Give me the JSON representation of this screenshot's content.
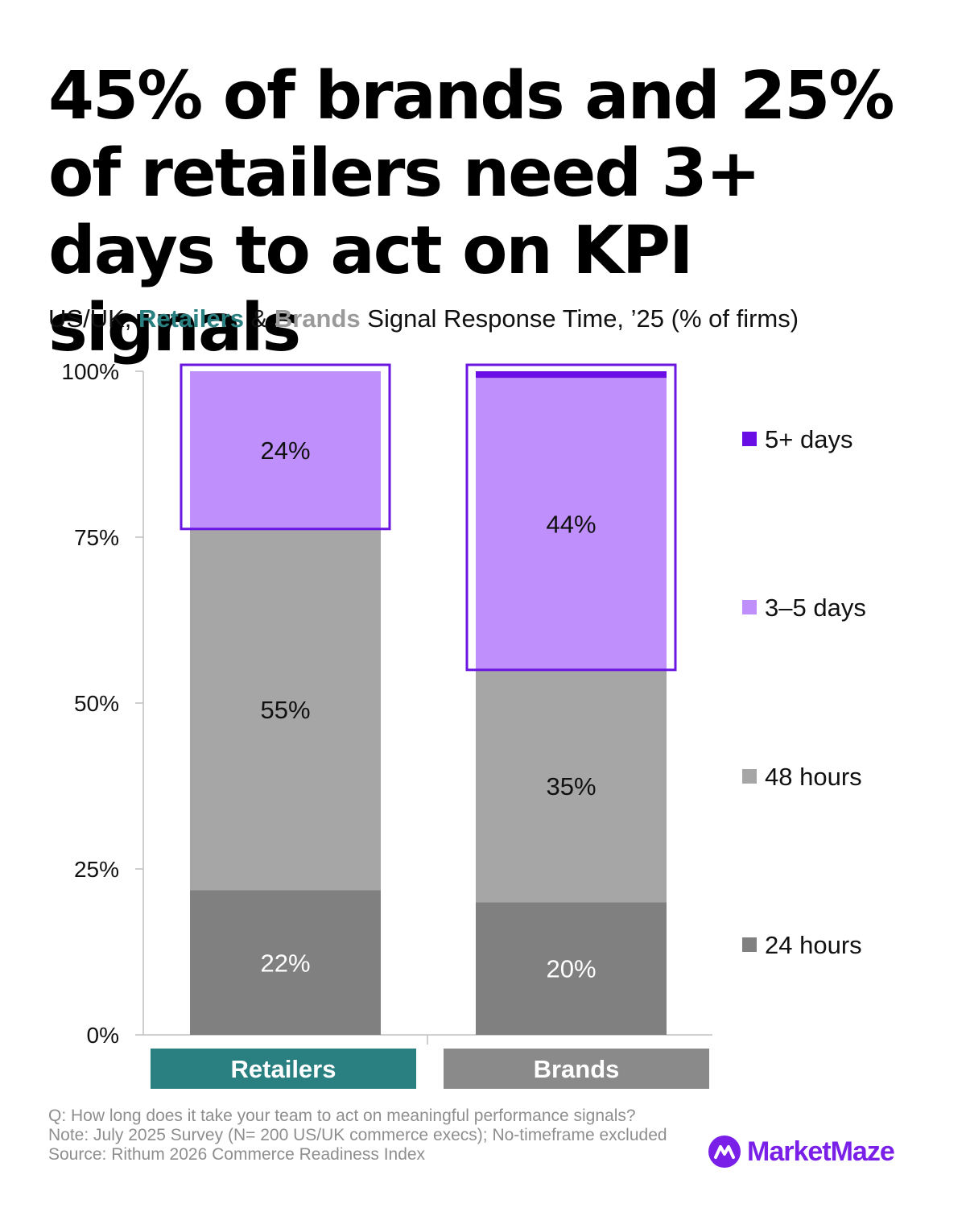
{
  "title": "45% of brands and 25% of retailers need 3+ days to act on KPI signals",
  "subtitle": {
    "prefix": "US/UK, ",
    "retailers": "Retailers",
    "amp": " & ",
    "brands": "Brands",
    "suffix": " Signal Response Time, ’25 (% of firms)"
  },
  "colors": {
    "d24": "#808080",
    "d48": "#a6a6a6",
    "d35": "#bf8ffc",
    "d5p": "#6a0ee6",
    "highlight": "#6a16e0",
    "retailers": "#2a7f80",
    "brands": "#8a8a8a",
    "axis": "#bfbfbf"
  },
  "chart_data": {
    "type": "bar",
    "stacked": true,
    "categories": [
      "Retailers",
      "Brands"
    ],
    "series": [
      {
        "name": "24 hours",
        "values": [
          22,
          20
        ],
        "labels": [
          "22%",
          "20%"
        ]
      },
      {
        "name": "48 hours",
        "values": [
          55,
          35
        ],
        "labels": [
          "55%",
          "35%"
        ]
      },
      {
        "name": "3–5 days",
        "values": [
          24,
          44
        ],
        "labels": [
          "24%",
          "44%"
        ]
      },
      {
        "name": "5+ days",
        "values": [
          0,
          1
        ],
        "labels": [
          "",
          ""
        ]
      }
    ],
    "ylim": [
      0,
      100
    ],
    "yticks": [
      0,
      25,
      50,
      75,
      100
    ],
    "ytick_labels": [
      "0%",
      "25%",
      "50%",
      "75%",
      "100%"
    ],
    "legend": [
      "5+ days",
      "3–5 days",
      "48 hours",
      "24 hours"
    ],
    "legend_position": "right",
    "highlight_series": [
      "3–5 days",
      "5+ days"
    ]
  },
  "footnotes": [
    "Q: How long does it take your team to act on meaningful performance signals?",
    "Note: July 2025 Survey (N= 200 US/UK commerce execs); No-timeframe excluded",
    "Source: Rithum 2026 Commerce Readiness Index"
  ],
  "brand": {
    "name": "MarketMaze",
    "icon": "marketmaze-logo-icon"
  }
}
